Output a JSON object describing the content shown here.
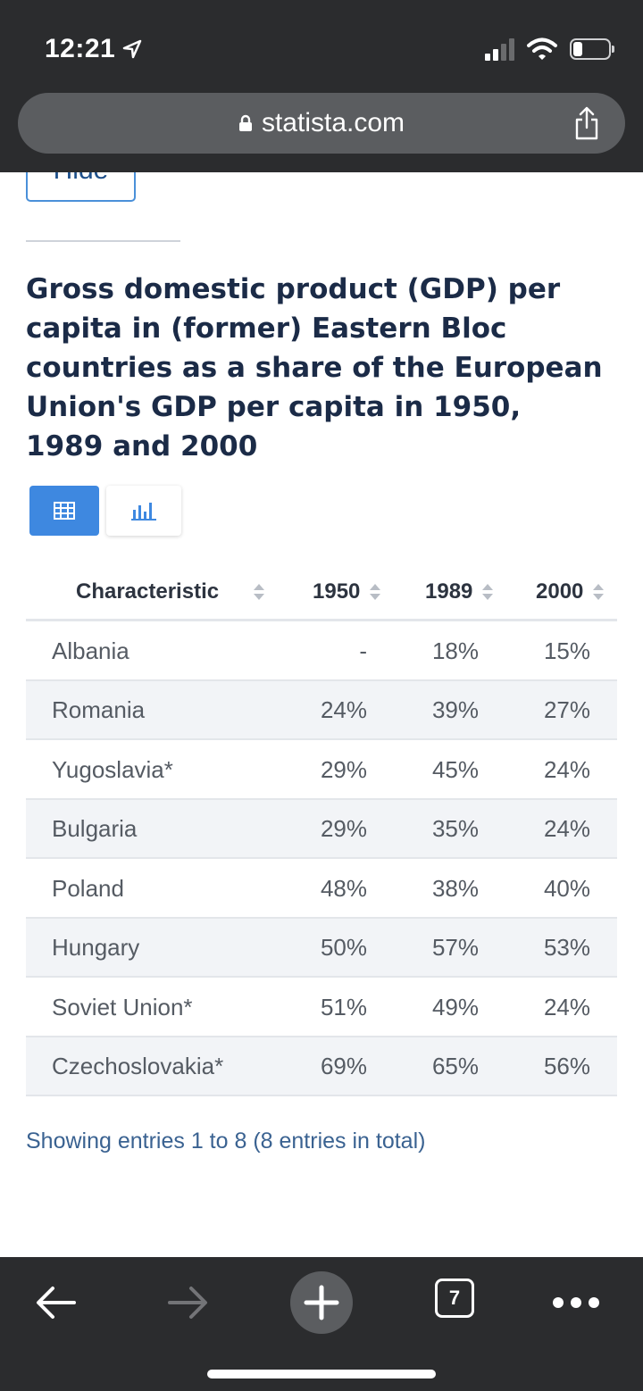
{
  "status_bar": {
    "time": "12:21"
  },
  "browser": {
    "url": "statista.com",
    "tab_count": "7"
  },
  "page": {
    "hide_label": "Hide",
    "title": "Gross domestic product (GDP) per capita in (former) Eastern Bloc countries as a share of the European Union's GDP per capita in 1950, 1989 and 2000",
    "footer": "Showing entries 1 to 8 (8 entries in total)"
  },
  "table": {
    "headers": [
      "Characteristic",
      "1950",
      "1989",
      "2000"
    ],
    "rows": [
      [
        "Albania",
        "-",
        "18%",
        "15%"
      ],
      [
        "Romania",
        "24%",
        "39%",
        "27%"
      ],
      [
        "Yugoslavia*",
        "29%",
        "45%",
        "24%"
      ],
      [
        "Bulgaria",
        "29%",
        "35%",
        "24%"
      ],
      [
        "Poland",
        "48%",
        "38%",
        "40%"
      ],
      [
        "Hungary",
        "50%",
        "57%",
        "53%"
      ],
      [
        "Soviet Union*",
        "51%",
        "49%",
        "24%"
      ],
      [
        "Czechoslovakia*",
        "69%",
        "65%",
        "56%"
      ]
    ]
  },
  "colors": {
    "accent": "#3e88e0",
    "title": "#1b2b47",
    "link": "#3a6291",
    "chrome": "#2b2c2e"
  },
  "icons": {
    "location": "location-arrow-icon",
    "signal": "cellular-signal-icon",
    "wifi": "wifi-icon",
    "battery": "battery-icon",
    "lock": "lock-icon",
    "share": "share-icon",
    "table_view": "table-grid-icon",
    "chart_view": "bar-chart-icon",
    "sort": "sort-arrows-icon",
    "back": "back-arrow-icon",
    "forward": "forward-arrow-icon",
    "new_tab": "plus-icon",
    "tabs": "tabs-icon",
    "menu": "more-dots-icon"
  }
}
